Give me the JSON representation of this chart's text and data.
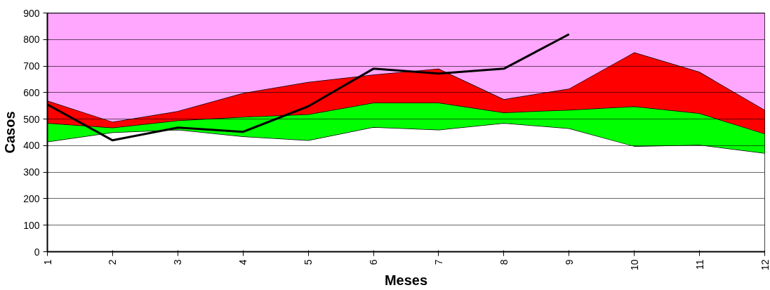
{
  "chart_data": {
    "type": "area",
    "stacked": true,
    "xlabel": "Meses",
    "ylabel": "Casos",
    "x": [
      1,
      2,
      3,
      4,
      5,
      6,
      7,
      8,
      9,
      10,
      11,
      12
    ],
    "xlim": [
      1,
      12
    ],
    "xticks": [
      1,
      2,
      3,
      4,
      5,
      6,
      7,
      8,
      9,
      10,
      11,
      12
    ],
    "ylim": [
      0,
      900
    ],
    "yticks": [
      0,
      100,
      200,
      300,
      400,
      500,
      600,
      700,
      800,
      900
    ],
    "grid": "y",
    "series": [
      {
        "color": "#ffffff",
        "values": [
          415,
          450,
          460,
          435,
          420,
          470,
          460,
          485,
          465,
          398,
          403,
          372
        ]
      },
      {
        "color": "#00ff00",
        "values": [
          70,
          18,
          35,
          73,
          98,
          92,
          102,
          40,
          70,
          150,
          119,
          73
        ]
      },
      {
        "color": "#ff0000",
        "values": [
          85,
          22,
          35,
          90,
          122,
          106,
          128,
          50,
          80,
          204,
          156,
          90
        ]
      },
      {
        "color": "#ffa6ff",
        "values": [
          330,
          410,
          370,
          302,
          260,
          232,
          210,
          325,
          285,
          148,
          222,
          365
        ]
      },
      {
        "type": "line",
        "color": "#000000",
        "values": [
          555,
          420,
          468,
          452,
          548,
          690,
          672,
          690,
          820,
          null,
          null,
          null
        ]
      }
    ]
  }
}
